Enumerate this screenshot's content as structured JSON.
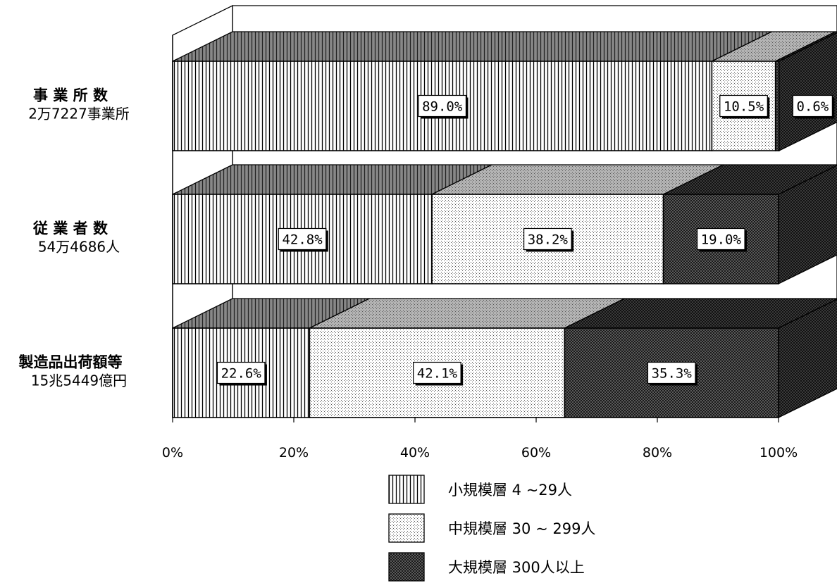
{
  "chart_data": {
    "type": "bar",
    "stacked": true,
    "percent_stacked": true,
    "orientation": "horizontal",
    "three_d": true,
    "categories": [
      {
        "name": "事 業 所 数",
        "sub": "2万7227事業所"
      },
      {
        "name": "従 業 者 数",
        "sub": "54万4686人"
      },
      {
        "name": "製造品出荷額等",
        "sub": "15兆5449億円"
      }
    ],
    "series": [
      {
        "name": "小規模層 4 ~29人",
        "pattern": "vertical-stripes",
        "values": [
          89.0,
          42.8,
          22.6
        ]
      },
      {
        "name": "中規模層 30 ~ 299人",
        "pattern": "light-dots",
        "values": [
          10.5,
          38.2,
          42.1
        ]
      },
      {
        "name": "大規模層 300人以上",
        "pattern": "dark-crosshatch",
        "values": [
          0.6,
          19.0,
          35.3
        ]
      }
    ],
    "data_labels": [
      [
        "89.0%",
        "10.5%",
        "0.6%"
      ],
      [
        "42.8%",
        "38.2%",
        "19.0%"
      ],
      [
        "22.6%",
        "42.1%",
        "35.3%"
      ]
    ],
    "x_ticks": [
      "0%",
      "20%",
      "40%",
      "60%",
      "80%",
      "100%"
    ],
    "xlim": [
      0,
      100
    ],
    "legend_position": "bottom",
    "grid": false,
    "title": "",
    "xlabel": "",
    "ylabel": ""
  }
}
